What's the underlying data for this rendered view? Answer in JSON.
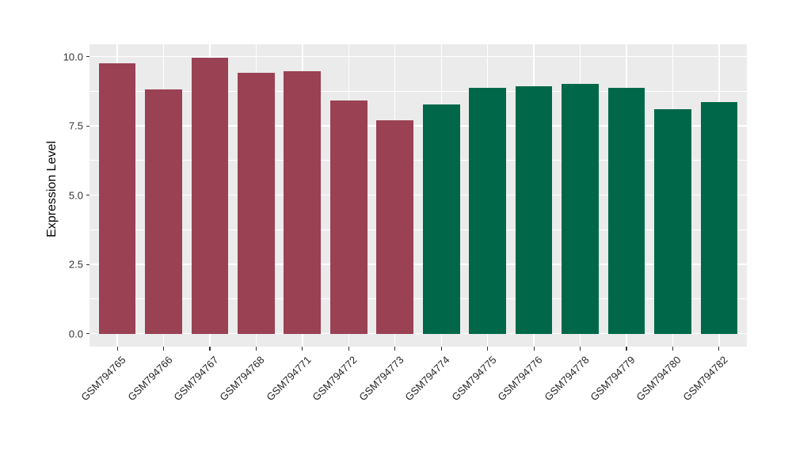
{
  "chart_data": {
    "type": "bar",
    "ylabel": "Expression Level",
    "categories": [
      "GSM794765",
      "GSM794766",
      "GSM794767",
      "GSM794768",
      "GSM794771",
      "GSM794772",
      "GSM794773",
      "GSM794774",
      "GSM794775",
      "GSM794776",
      "GSM794778",
      "GSM794779",
      "GSM794780",
      "GSM794782"
    ],
    "values": [
      9.76,
      8.81,
      9.95,
      9.42,
      9.46,
      8.41,
      7.71,
      8.28,
      8.86,
      8.94,
      9.02,
      8.86,
      8.1,
      8.36
    ],
    "groups": [
      "group1",
      "group1",
      "group1",
      "group1",
      "group1",
      "group1",
      "group1",
      "group2",
      "group2",
      "group2",
      "group2",
      "group2",
      "group2",
      "group2"
    ],
    "group_colors": {
      "group1": "#9A4153",
      "group2": "#006848"
    },
    "ylim": [
      0,
      10.45
    ],
    "yticks": [
      0,
      2.5,
      5,
      7.5,
      10
    ],
    "ytick_labels": [
      "0.0",
      "2.5",
      "5.0",
      "7.5",
      "10.0"
    ],
    "minor_yticks": [
      1.25,
      3.75,
      6.25,
      8.75
    ],
    "grid": true,
    "legend_position": "none",
    "x_label_rotation": 45,
    "bar_width_fraction": 0.8,
    "panel_background": "#EBEBEB",
    "gridline_color": "#FFFFFF",
    "axis_text_color": "#333333"
  }
}
